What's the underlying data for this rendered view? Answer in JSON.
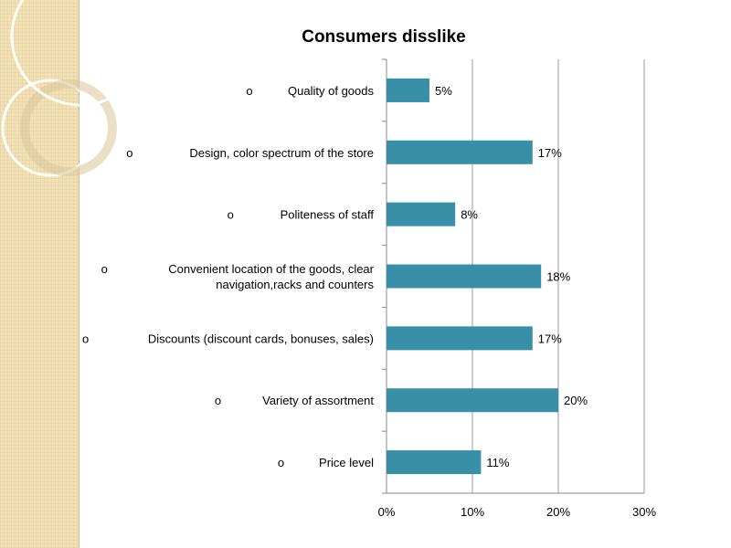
{
  "chart_data": {
    "type": "bar",
    "orientation": "horizontal",
    "title": "Consumers disslike",
    "categories": [
      {
        "bullet": "o",
        "label": "Quality of goods",
        "lines": [
          "Quality of goods"
        ]
      },
      {
        "bullet": "o",
        "label": "Design, color spectrum of the store",
        "lines": [
          "Design, color spectrum of the store"
        ]
      },
      {
        "bullet": "o",
        "label": "Politeness of staff",
        "lines": [
          "Politeness of staff"
        ]
      },
      {
        "bullet": "o",
        "label": "Convenient location of the goods, clear navigation,racks and counters",
        "lines": [
          "Convenient location of the goods, clear",
          "navigation,racks and counters"
        ]
      },
      {
        "bullet": "o",
        "label": "Discounts (discount cards, bonuses, sales)",
        "lines": [
          "Discounts (discount cards, bonuses, sales)"
        ]
      },
      {
        "bullet": "o",
        "label": "Variety of assortment",
        "lines": [
          "Variety of assortment"
        ]
      },
      {
        "bullet": "o",
        "label": "Price level",
        "lines": [
          "Price level"
        ]
      }
    ],
    "values": [
      5,
      17,
      8,
      18,
      17,
      20,
      11
    ],
    "data_labels": [
      "5%",
      "17%",
      "8%",
      "18%",
      "17%",
      "20%",
      "11%"
    ],
    "xlim": [
      0,
      30
    ],
    "x_ticks": [
      0,
      10,
      20,
      30
    ],
    "x_tick_labels": [
      "0%",
      "10%",
      "20%",
      "30%"
    ],
    "grid": "vertical",
    "legend": "none",
    "bar_color": "#3a8fa8",
    "grid_color": "#999999"
  }
}
